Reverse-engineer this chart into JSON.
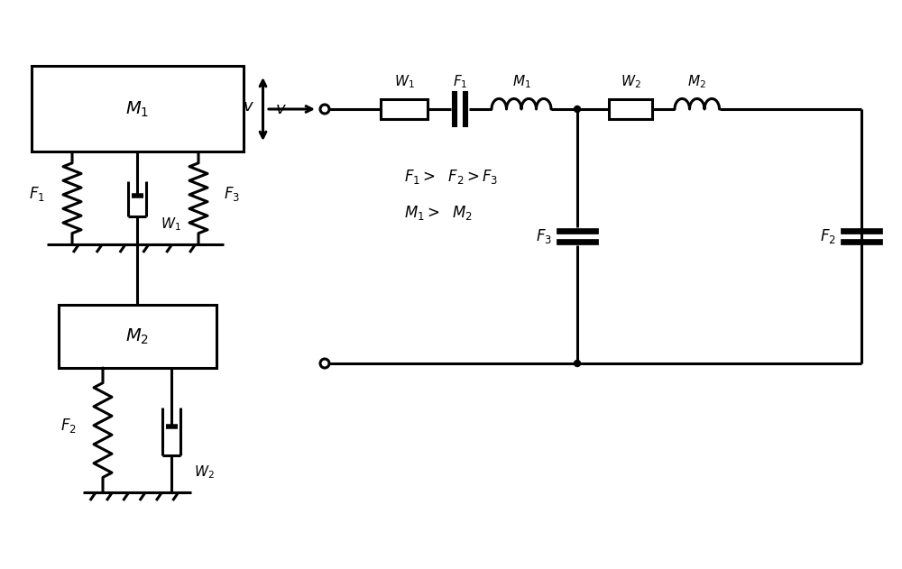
{
  "bg_color": "#ffffff",
  "line_color": "#000000",
  "line_width": 2.2,
  "fig_width": 10.0,
  "fig_height": 6.31,
  "dpi": 100,
  "xlim": [
    0,
    10.0
  ],
  "ylim": [
    0,
    6.31
  ]
}
